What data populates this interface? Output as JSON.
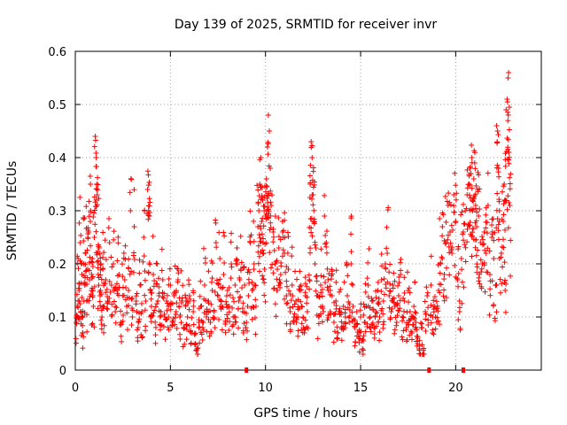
{
  "chart_data": {
    "type": "scatter",
    "title": "Day 139 of 2025, SRMTID for receiver invr",
    "xlabel": "GPS time / hours",
    "ylabel": "SRMTID / TECUs",
    "xlim": [
      0,
      24.5
    ],
    "ylim": [
      0,
      0.6
    ],
    "xticks": [
      0,
      5,
      10,
      15,
      20
    ],
    "xtick_labels": [
      "0",
      "5",
      "10",
      "15",
      "20"
    ],
    "yticks": [
      0,
      0.1,
      0.2,
      0.3,
      0.4,
      0.5,
      0.6
    ],
    "ytick_labels": [
      "0",
      "0.1",
      "0.2",
      "0.3",
      "0.4",
      "0.5",
      "0.6"
    ],
    "grid": true,
    "marker": "+",
    "color": "#ff0000",
    "points": [
      [
        0.05,
        0.09
      ],
      [
        0.1,
        0.12
      ],
      [
        0.15,
        0.21
      ],
      [
        0.2,
        0.15
      ],
      [
        0.25,
        0.24
      ],
      [
        0.3,
        0.11
      ],
      [
        0.35,
        0.18
      ],
      [
        0.4,
        0.07
      ],
      [
        0.45,
        0.2
      ],
      [
        0.5,
        0.16
      ],
      [
        0.55,
        0.22
      ],
      [
        0.6,
        0.13
      ],
      [
        0.65,
        0.19
      ],
      [
        0.7,
        0.26
      ],
      [
        0.75,
        0.17
      ],
      [
        0.8,
        0.3
      ],
      [
        0.85,
        0.15
      ],
      [
        0.9,
        0.21
      ],
      [
        0.95,
        0.12
      ],
      [
        1.0,
        0.25
      ],
      [
        1.05,
        0.44
      ],
      [
        1.1,
        0.4
      ],
      [
        1.12,
        0.35
      ],
      [
        1.15,
        0.33
      ],
      [
        1.2,
        0.18
      ],
      [
        1.25,
        0.23
      ],
      [
        1.3,
        0.14
      ],
      [
        1.35,
        0.2
      ],
      [
        1.4,
        0.1
      ],
      [
        1.45,
        0.19
      ],
      [
        1.5,
        0.12
      ],
      [
        1.6,
        0.17
      ],
      [
        1.7,
        0.13
      ],
      [
        1.8,
        0.24
      ],
      [
        1.9,
        0.16
      ],
      [
        2.0,
        0.2
      ],
      [
        2.1,
        0.11
      ],
      [
        2.2,
        0.15
      ],
      [
        2.3,
        0.18
      ],
      [
        2.4,
        0.09
      ],
      [
        2.5,
        0.14
      ],
      [
        2.6,
        0.17
      ],
      [
        2.7,
        0.12
      ],
      [
        2.8,
        0.15
      ],
      [
        2.9,
        0.3
      ],
      [
        3.0,
        0.1
      ],
      [
        3.1,
        0.27
      ],
      [
        3.2,
        0.13
      ],
      [
        3.3,
        0.08
      ],
      [
        3.4,
        0.16
      ],
      [
        3.5,
        0.11
      ],
      [
        3.6,
        0.25
      ],
      [
        3.7,
        0.13
      ],
      [
        3.8,
        0.34
      ],
      [
        3.85,
        0.3
      ],
      [
        3.9,
        0.29
      ],
      [
        3.95,
        0.15
      ],
      [
        4.0,
        0.12
      ],
      [
        4.1,
        0.18
      ],
      [
        4.2,
        0.09
      ],
      [
        4.3,
        0.2
      ],
      [
        4.4,
        0.14
      ],
      [
        4.5,
        0.11
      ],
      [
        4.6,
        0.17
      ],
      [
        4.7,
        0.1
      ],
      [
        4.8,
        0.13
      ],
      [
        4.9,
        0.12
      ],
      [
        5.0,
        0.16
      ],
      [
        5.1,
        0.09
      ],
      [
        5.2,
        0.14
      ],
      [
        5.3,
        0.11
      ],
      [
        5.4,
        0.17
      ],
      [
        5.5,
        0.1
      ],
      [
        5.6,
        0.13
      ],
      [
        5.7,
        0.08
      ],
      [
        5.8,
        0.12
      ],
      [
        5.9,
        0.1
      ],
      [
        6.0,
        0.14
      ],
      [
        6.1,
        0.07
      ],
      [
        6.2,
        0.11
      ],
      [
        6.3,
        0.05
      ],
      [
        6.4,
        0.04
      ],
      [
        6.5,
        0.09
      ],
      [
        6.6,
        0.12
      ],
      [
        6.7,
        0.08
      ],
      [
        6.8,
        0.16
      ],
      [
        6.9,
        0.1
      ],
      [
        7.0,
        0.13
      ],
      [
        7.1,
        0.09
      ],
      [
        7.2,
        0.15
      ],
      [
        7.3,
        0.11
      ],
      [
        7.4,
        0.24
      ],
      [
        7.5,
        0.14
      ],
      [
        7.6,
        0.21
      ],
      [
        7.7,
        0.12
      ],
      [
        7.8,
        0.18
      ],
      [
        7.9,
        0.09
      ],
      [
        8.0,
        0.15
      ],
      [
        8.1,
        0.12
      ],
      [
        8.2,
        0.2
      ],
      [
        8.3,
        0.1
      ],
      [
        8.4,
        0.16
      ],
      [
        8.5,
        0.23
      ],
      [
        8.6,
        0.13
      ],
      [
        8.7,
        0.19
      ],
      [
        8.8,
        0.11
      ],
      [
        8.9,
        0.16
      ],
      [
        9.0,
        0.09
      ],
      [
        9.1,
        0.14
      ],
      [
        9.2,
        0.24
      ],
      [
        9.3,
        0.15
      ],
      [
        9.4,
        0.2
      ],
      [
        9.5,
        0.12
      ],
      [
        9.6,
        0.27
      ],
      [
        9.65,
        0.3
      ],
      [
        9.7,
        0.35
      ],
      [
        9.75,
        0.4
      ],
      [
        9.8,
        0.28
      ],
      [
        9.85,
        0.32
      ],
      [
        9.9,
        0.22
      ],
      [
        9.95,
        0.19
      ],
      [
        10.0,
        0.29
      ],
      [
        10.05,
        0.36
      ],
      [
        10.1,
        0.42
      ],
      [
        10.15,
        0.48
      ],
      [
        10.2,
        0.45
      ],
      [
        10.25,
        0.38
      ],
      [
        10.3,
        0.31
      ],
      [
        10.4,
        0.26
      ],
      [
        10.5,
        0.2
      ],
      [
        10.6,
        0.15
      ],
      [
        10.7,
        0.23
      ],
      [
        10.8,
        0.18
      ],
      [
        10.9,
        0.26
      ],
      [
        11.0,
        0.22
      ],
      [
        11.1,
        0.14
      ],
      [
        11.2,
        0.19
      ],
      [
        11.3,
        0.11
      ],
      [
        11.4,
        0.16
      ],
      [
        11.5,
        0.09
      ],
      [
        11.6,
        0.13
      ],
      [
        11.7,
        0.1
      ],
      [
        11.8,
        0.15
      ],
      [
        11.9,
        0.12
      ],
      [
        12.0,
        0.08
      ],
      [
        12.1,
        0.14
      ],
      [
        12.2,
        0.11
      ],
      [
        12.3,
        0.17
      ],
      [
        12.35,
        0.35
      ],
      [
        12.4,
        0.43
      ],
      [
        12.45,
        0.4
      ],
      [
        12.5,
        0.33
      ],
      [
        12.55,
        0.28
      ],
      [
        12.6,
        0.2
      ],
      [
        12.7,
        0.14
      ],
      [
        12.8,
        0.1
      ],
      [
        12.9,
        0.16
      ],
      [
        13.0,
        0.12
      ],
      [
        13.1,
        0.29
      ],
      [
        13.2,
        0.24
      ],
      [
        13.3,
        0.15
      ],
      [
        13.4,
        0.11
      ],
      [
        13.5,
        0.14
      ],
      [
        13.6,
        0.09
      ],
      [
        13.7,
        0.13
      ],
      [
        13.8,
        0.07
      ],
      [
        13.9,
        0.11
      ],
      [
        14.0,
        0.08
      ],
      [
        14.1,
        0.12
      ],
      [
        14.2,
        0.1
      ],
      [
        14.3,
        0.14
      ],
      [
        14.4,
        0.09
      ],
      [
        14.5,
        0.2
      ],
      [
        14.6,
        0.12
      ],
      [
        14.7,
        0.08
      ],
      [
        14.8,
        0.11
      ],
      [
        14.9,
        0.06
      ],
      [
        15.0,
        0.1
      ],
      [
        15.1,
        0.04
      ],
      [
        15.2,
        0.09
      ],
      [
        15.3,
        0.12
      ],
      [
        15.4,
        0.16
      ],
      [
        15.5,
        0.1
      ],
      [
        15.6,
        0.13
      ],
      [
        15.7,
        0.08
      ],
      [
        15.8,
        0.11
      ],
      [
        15.9,
        0.15
      ],
      [
        16.0,
        0.1
      ],
      [
        16.1,
        0.17
      ],
      [
        16.2,
        0.13
      ],
      [
        16.3,
        0.2
      ],
      [
        16.4,
        0.22
      ],
      [
        16.5,
        0.14
      ],
      [
        16.6,
        0.11
      ],
      [
        16.7,
        0.16
      ],
      [
        16.8,
        0.12
      ],
      [
        16.9,
        0.09
      ],
      [
        17.0,
        0.14
      ],
      [
        17.1,
        0.18
      ],
      [
        17.2,
        0.1
      ],
      [
        17.3,
        0.13
      ],
      [
        17.4,
        0.08
      ],
      [
        17.5,
        0.15
      ],
      [
        17.6,
        0.11
      ],
      [
        17.7,
        0.07
      ],
      [
        17.8,
        0.12
      ],
      [
        17.9,
        0.09
      ],
      [
        18.0,
        0.06
      ],
      [
        18.1,
        0.04
      ],
      [
        18.2,
        0.08
      ],
      [
        18.3,
        0.03
      ],
      [
        18.4,
        0.11
      ],
      [
        18.5,
        0.14
      ],
      [
        18.7,
        0.16
      ],
      [
        18.8,
        0.1
      ],
      [
        18.9,
        0.12
      ],
      [
        19.0,
        0.09
      ],
      [
        19.1,
        0.15
      ],
      [
        19.2,
        0.2
      ],
      [
        19.3,
        0.27
      ],
      [
        19.4,
        0.18
      ],
      [
        19.5,
        0.24
      ],
      [
        19.6,
        0.31
      ],
      [
        19.7,
        0.26
      ],
      [
        19.8,
        0.22
      ],
      [
        19.9,
        0.33
      ],
      [
        20.0,
        0.28
      ],
      [
        20.1,
        0.17
      ],
      [
        20.2,
        0.13
      ],
      [
        20.3,
        0.21
      ],
      [
        20.4,
        0.26
      ],
      [
        20.5,
        0.3
      ],
      [
        20.6,
        0.33
      ],
      [
        20.7,
        0.35
      ],
      [
        20.75,
        0.38
      ],
      [
        20.8,
        0.37
      ],
      [
        20.85,
        0.4
      ],
      [
        20.9,
        0.32
      ],
      [
        20.95,
        0.36
      ],
      [
        21.0,
        0.39
      ],
      [
        21.05,
        0.31
      ],
      [
        21.1,
        0.27
      ],
      [
        21.15,
        0.34
      ],
      [
        21.2,
        0.29
      ],
      [
        21.3,
        0.24
      ],
      [
        21.4,
        0.2
      ],
      [
        21.5,
        0.26
      ],
      [
        21.6,
        0.22
      ],
      [
        21.7,
        0.31
      ],
      [
        21.8,
        0.18
      ],
      [
        21.9,
        0.25
      ],
      [
        22.0,
        0.21
      ],
      [
        22.1,
        0.16
      ],
      [
        22.15,
        0.46
      ],
      [
        22.2,
        0.45
      ],
      [
        22.25,
        0.38
      ],
      [
        22.3,
        0.3
      ],
      [
        22.4,
        0.22
      ],
      [
        22.5,
        0.28
      ],
      [
        22.55,
        0.35
      ],
      [
        22.6,
        0.15
      ],
      [
        22.65,
        0.49
      ],
      [
        22.7,
        0.51
      ],
      [
        22.75,
        0.55
      ],
      [
        22.78,
        0.56
      ],
      [
        22.8,
        0.41
      ],
      [
        22.85,
        0.31
      ]
    ]
  }
}
